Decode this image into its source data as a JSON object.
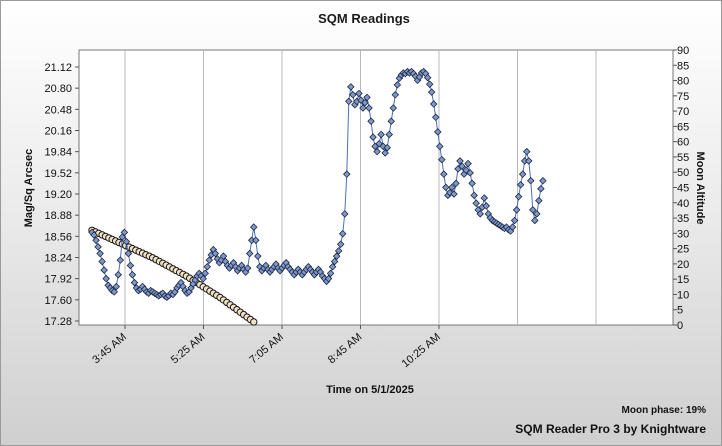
{
  "chart_data": {
    "type": "scatter",
    "title": "SQM Readings",
    "xlabel": "Time on 5/1/2025",
    "ylabel": "Mag/Sq Arcsec",
    "y2label": "Moon Altitude",
    "x_ticks": [
      "3:45 AM",
      "5:25 AM",
      "7:05 AM",
      "8:45 AM",
      "10:25 AM"
    ],
    "y_ticks": [
      "17.28",
      "17.60",
      "17.92",
      "18.24",
      "18.56",
      "18.88",
      "19.20",
      "19.52",
      "19.84",
      "20.16",
      "20.48",
      "20.80",
      "21.12"
    ],
    "y2_ticks": [
      "0",
      "5",
      "10",
      "15",
      "20",
      "25",
      "30",
      "35",
      "40",
      "45",
      "50",
      "55",
      "60",
      "65",
      "70",
      "75",
      "80",
      "85",
      "90"
    ],
    "x_range_minutes": [
      0,
      750
    ],
    "ylim": [
      17.28,
      21.12
    ],
    "y2lim": [
      0,
      90
    ],
    "grid": true,
    "series": [
      {
        "color": "#7f97c9",
        "axis": "left",
        "points": [
          [
            0,
            18.62
          ],
          [
            3,
            18.58
          ],
          [
            6,
            18.5
          ],
          [
            9,
            18.4
          ],
          [
            12,
            18.3
          ],
          [
            15,
            18.18
          ],
          [
            18,
            18.05
          ],
          [
            21,
            17.92
          ],
          [
            24,
            17.82
          ],
          [
            27,
            17.78
          ],
          [
            30,
            17.74
          ],
          [
            33,
            17.72
          ],
          [
            36,
            17.8
          ],
          [
            39,
            17.98
          ],
          [
            42,
            18.2
          ],
          [
            45,
            18.55
          ],
          [
            48,
            18.62
          ],
          [
            51,
            18.48
          ],
          [
            54,
            18.3
          ],
          [
            57,
            18.12
          ],
          [
            60,
            17.98
          ],
          [
            63,
            17.86
          ],
          [
            66,
            17.78
          ],
          [
            69,
            17.74
          ],
          [
            72,
            17.76
          ],
          [
            75,
            17.8
          ],
          [
            78,
            17.76
          ],
          [
            81,
            17.72
          ],
          [
            84,
            17.7
          ],
          [
            87,
            17.74
          ],
          [
            90,
            17.72
          ],
          [
            93,
            17.7
          ],
          [
            96,
            17.68
          ],
          [
            99,
            17.66
          ],
          [
            102,
            17.68
          ],
          [
            105,
            17.7
          ],
          [
            108,
            17.66
          ],
          [
            111,
            17.64
          ],
          [
            114,
            17.66
          ],
          [
            117,
            17.7
          ],
          [
            120,
            17.68
          ],
          [
            123,
            17.72
          ],
          [
            126,
            17.78
          ],
          [
            129,
            17.82
          ],
          [
            132,
            17.86
          ],
          [
            135,
            17.8
          ],
          [
            138,
            17.74
          ],
          [
            141,
            17.7
          ],
          [
            144,
            17.72
          ],
          [
            147,
            17.78
          ],
          [
            150,
            17.84
          ],
          [
            153,
            17.9
          ],
          [
            156,
            17.96
          ],
          [
            159,
            18.0
          ],
          [
            162,
            17.96
          ],
          [
            165,
            17.92
          ],
          [
            168,
            18.0
          ],
          [
            171,
            18.1
          ],
          [
            174,
            18.2
          ],
          [
            177,
            18.28
          ],
          [
            180,
            18.36
          ],
          [
            183,
            18.3
          ],
          [
            186,
            18.22
          ],
          [
            189,
            18.16
          ],
          [
            192,
            18.2
          ],
          [
            195,
            18.26
          ],
          [
            198,
            18.18
          ],
          [
            201,
            18.12
          ],
          [
            204,
            18.08
          ],
          [
            207,
            18.12
          ],
          [
            210,
            18.16
          ],
          [
            213,
            18.1
          ],
          [
            216,
            18.04
          ],
          [
            219,
            18.08
          ],
          [
            222,
            18.12
          ],
          [
            225,
            18.06
          ],
          [
            228,
            18.02
          ],
          [
            231,
            18.08
          ],
          [
            234,
            18.3
          ],
          [
            237,
            18.5
          ],
          [
            240,
            18.7
          ],
          [
            243,
            18.5
          ],
          [
            246,
            18.26
          ],
          [
            249,
            18.1
          ],
          [
            252,
            18.04
          ],
          [
            255,
            18.08
          ],
          [
            258,
            18.12
          ],
          [
            261,
            18.06
          ],
          [
            264,
            18.02
          ],
          [
            267,
            18.06
          ],
          [
            270,
            18.1
          ],
          [
            273,
            18.14
          ],
          [
            276,
            18.08
          ],
          [
            279,
            18.04
          ],
          [
            282,
            18.08
          ],
          [
            285,
            18.12
          ],
          [
            288,
            18.16
          ],
          [
            291,
            18.1
          ],
          [
            294,
            18.06
          ],
          [
            297,
            18.02
          ],
          [
            300,
            17.98
          ],
          [
            303,
            18.02
          ],
          [
            306,
            18.06
          ],
          [
            309,
            18.02
          ],
          [
            312,
            17.98
          ],
          [
            315,
            18.02
          ],
          [
            318,
            18.06
          ],
          [
            321,
            18.1
          ],
          [
            324,
            18.06
          ],
          [
            327,
            18.02
          ],
          [
            330,
            17.98
          ],
          [
            333,
            18.02
          ],
          [
            336,
            18.06
          ],
          [
            339,
            18.02
          ],
          [
            342,
            17.96
          ],
          [
            345,
            17.92
          ],
          [
            348,
            17.88
          ],
          [
            351,
            17.92
          ],
          [
            354,
            18.0
          ],
          [
            357,
            18.1
          ],
          [
            360,
            18.18
          ],
          [
            363,
            18.26
          ],
          [
            366,
            18.34
          ],
          [
            369,
            18.44
          ],
          [
            372,
            18.6
          ],
          [
            375,
            18.9
          ],
          [
            378,
            19.5
          ],
          [
            381,
            20.6
          ],
          [
            384,
            20.82
          ],
          [
            387,
            20.7
          ],
          [
            390,
            20.55
          ],
          [
            393,
            20.6
          ],
          [
            396,
            20.72
          ],
          [
            399,
            20.62
          ],
          [
            402,
            20.5
          ],
          [
            405,
            20.58
          ],
          [
            408,
            20.66
          ],
          [
            411,
            20.5
          ],
          [
            414,
            20.3
          ],
          [
            417,
            20.06
          ],
          [
            420,
            19.92
          ],
          [
            423,
            19.84
          ],
          [
            426,
            19.96
          ],
          [
            429,
            20.1
          ],
          [
            432,
            19.92
          ],
          [
            435,
            19.82
          ],
          [
            438,
            19.9
          ],
          [
            441,
            20.1
          ],
          [
            444,
            20.3
          ],
          [
            447,
            20.5
          ],
          [
            450,
            20.7
          ],
          [
            453,
            20.85
          ],
          [
            456,
            20.95
          ],
          [
            459,
            21.0
          ],
          [
            462,
            21.03
          ],
          [
            465,
            21.02
          ],
          [
            468,
            21.05
          ],
          [
            471,
            21.03
          ],
          [
            474,
            21.05
          ],
          [
            477,
            21.02
          ],
          [
            480,
            20.98
          ],
          [
            483,
            20.92
          ],
          [
            486,
            20.97
          ],
          [
            489,
            21.03
          ],
          [
            492,
            21.05
          ],
          [
            495,
            21.02
          ],
          [
            498,
            20.96
          ],
          [
            501,
            20.86
          ],
          [
            504,
            20.74
          ],
          [
            507,
            20.56
          ],
          [
            510,
            20.36
          ],
          [
            513,
            20.14
          ],
          [
            516,
            19.92
          ],
          [
            519,
            19.72
          ],
          [
            522,
            19.5
          ],
          [
            525,
            19.3
          ],
          [
            528,
            19.18
          ],
          [
            531,
            19.22
          ],
          [
            534,
            19.3
          ],
          [
            537,
            19.2
          ],
          [
            540,
            19.36
          ],
          [
            543,
            19.58
          ],
          [
            546,
            19.7
          ],
          [
            549,
            19.62
          ],
          [
            552,
            19.5
          ],
          [
            555,
            19.56
          ],
          [
            558,
            19.66
          ],
          [
            561,
            19.52
          ],
          [
            564,
            19.36
          ],
          [
            567,
            19.18
          ],
          [
            570,
            19.06
          ],
          [
            573,
            18.96
          ],
          [
            576,
            18.9
          ],
          [
            579,
            19.0
          ],
          [
            582,
            19.14
          ],
          [
            585,
            19.02
          ],
          [
            588,
            18.9
          ],
          [
            591,
            18.84
          ],
          [
            594,
            18.8
          ],
          [
            597,
            18.78
          ],
          [
            600,
            18.76
          ],
          [
            603,
            18.74
          ],
          [
            606,
            18.72
          ],
          [
            609,
            18.7
          ],
          [
            612,
            18.68
          ],
          [
            615,
            18.7
          ],
          [
            618,
            18.66
          ],
          [
            621,
            18.64
          ],
          [
            624,
            18.7
          ],
          [
            627,
            18.8
          ],
          [
            630,
            18.96
          ],
          [
            633,
            19.16
          ],
          [
            636,
            19.34
          ],
          [
            639,
            19.5
          ],
          [
            642,
            19.7
          ],
          [
            645,
            19.84
          ],
          [
            648,
            19.7
          ],
          [
            651,
            19.4
          ],
          [
            654,
            18.96
          ],
          [
            657,
            18.8
          ],
          [
            660,
            18.9
          ],
          [
            663,
            19.1
          ],
          [
            666,
            19.28
          ],
          [
            669,
            19.4
          ]
        ]
      },
      {
        "color": "#f0e2c6",
        "axis": "right",
        "points": [
          [
            0,
            31
          ],
          [
            5,
            30.5
          ],
          [
            10,
            30
          ],
          [
            15,
            29.5
          ],
          [
            20,
            29
          ],
          [
            25,
            28.5
          ],
          [
            30,
            28
          ],
          [
            35,
            27.5
          ],
          [
            40,
            27
          ],
          [
            45,
            26.5
          ],
          [
            50,
            26
          ],
          [
            55,
            25.5
          ],
          [
            60,
            25
          ],
          [
            65,
            24.5
          ],
          [
            70,
            24
          ],
          [
            75,
            23.5
          ],
          [
            80,
            23
          ],
          [
            85,
            22.5
          ],
          [
            90,
            22
          ],
          [
            95,
            21.4
          ],
          [
            100,
            20.8
          ],
          [
            105,
            20.2
          ],
          [
            110,
            19.6
          ],
          [
            115,
            19
          ],
          [
            120,
            18.4
          ],
          [
            125,
            17.8
          ],
          [
            130,
            17.2
          ],
          [
            135,
            16.6
          ],
          [
            140,
            16
          ],
          [
            145,
            15.3
          ],
          [
            150,
            14.6
          ],
          [
            155,
            13.9
          ],
          [
            160,
            13.2
          ],
          [
            165,
            12.5
          ],
          [
            170,
            11.8
          ],
          [
            175,
            11.1
          ],
          [
            180,
            10.4
          ],
          [
            185,
            9.7
          ],
          [
            190,
            9
          ],
          [
            195,
            8.2
          ],
          [
            200,
            7.4
          ],
          [
            205,
            6.6
          ],
          [
            210,
            5.8
          ],
          [
            215,
            5
          ],
          [
            220,
            4.2
          ],
          [
            225,
            3.4
          ],
          [
            230,
            2.6
          ],
          [
            235,
            1.8
          ],
          [
            240,
            1
          ]
        ]
      }
    ]
  },
  "footer": {
    "moon_phase": "Moon phase: 19%",
    "credit": "SQM Reader Pro 3 by Knightware"
  }
}
